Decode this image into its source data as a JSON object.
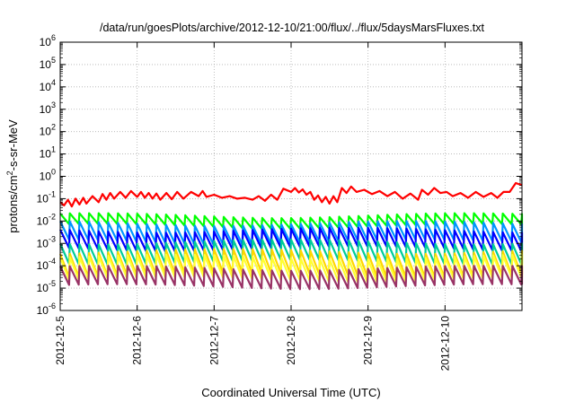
{
  "chart_data": {
    "type": "line",
    "title": "/data/run/goesPlots/archive/2012-12-10/21:00/flux/../flux/5daysMarsFluxes.txt",
    "xlabel": "Coordinated Universal Time (UTC)",
    "ylabel_parts": [
      "protons/cm",
      "2",
      "-s-sr-MeV"
    ],
    "y_scale": "log",
    "ylim": [
      1e-06,
      1000000.0
    ],
    "xlim": [
      "2012-12-05",
      "2012-12-11"
    ],
    "grid": true,
    "y_ticks": [
      {
        "base": "10",
        "exp": "-6"
      },
      {
        "base": "10",
        "exp": "-5"
      },
      {
        "base": "10",
        "exp": "-4"
      },
      {
        "base": "10",
        "exp": "-3"
      },
      {
        "base": "10",
        "exp": "-2"
      },
      {
        "base": "10",
        "exp": "-1"
      },
      {
        "base": "10",
        "exp": "0"
      },
      {
        "base": "10",
        "exp": "1"
      },
      {
        "base": "10",
        "exp": "2"
      },
      {
        "base": "10",
        "exp": "3"
      },
      {
        "base": "10",
        "exp": "4"
      },
      {
        "base": "10",
        "exp": "5"
      },
      {
        "base": "10",
        "exp": "6"
      }
    ],
    "x_ticks": [
      "2012-12-5",
      "2012-12-6",
      "2012-12-7",
      "2012-12-8",
      "2012-12-9",
      "2012-12-10"
    ],
    "series": [
      {
        "color": "#ff0000",
        "x": [
          5.0,
          5.05,
          5.1,
          5.15,
          5.2,
          5.25,
          5.3,
          5.34,
          5.42,
          5.5,
          5.55,
          5.6,
          5.65,
          5.7,
          5.78,
          5.85,
          5.92,
          6.0,
          6.05,
          6.1,
          6.15,
          6.2,
          6.25,
          6.3,
          6.38,
          6.45,
          6.52,
          6.6,
          6.7,
          6.8,
          6.85,
          6.9,
          7.0,
          7.1,
          7.2,
          7.3,
          7.4,
          7.5,
          7.58,
          7.66,
          7.74,
          7.82,
          7.9,
          8.0,
          8.05,
          8.1,
          8.15,
          8.2,
          8.25,
          8.3,
          8.35,
          8.4,
          8.45,
          8.5,
          8.55,
          8.6,
          8.66,
          8.72,
          8.78,
          8.85,
          8.95,
          9.05,
          9.15,
          9.25,
          9.35,
          9.45,
          9.55,
          9.65,
          9.7,
          9.78,
          9.86,
          9.94,
          10.02,
          10.1,
          10.2,
          10.3,
          10.4,
          10.5,
          10.6,
          10.68,
          10.76,
          10.84,
          10.92,
          11.0
        ],
        "values": [
          0.07,
          0.05,
          0.09,
          0.045,
          0.1,
          0.055,
          0.11,
          0.06,
          0.13,
          0.07,
          0.16,
          0.09,
          0.18,
          0.1,
          0.2,
          0.11,
          0.22,
          0.12,
          0.2,
          0.11,
          0.18,
          0.1,
          0.17,
          0.09,
          0.18,
          0.095,
          0.2,
          0.1,
          0.2,
          0.13,
          0.22,
          0.12,
          0.15,
          0.11,
          0.13,
          0.1,
          0.11,
          0.09,
          0.13,
          0.08,
          0.15,
          0.09,
          0.28,
          0.2,
          0.3,
          0.19,
          0.26,
          0.15,
          0.2,
          0.09,
          0.14,
          0.07,
          0.12,
          0.06,
          0.13,
          0.07,
          0.3,
          0.18,
          0.35,
          0.2,
          0.25,
          0.16,
          0.22,
          0.13,
          0.2,
          0.1,
          0.17,
          0.09,
          0.25,
          0.15,
          0.3,
          0.18,
          0.2,
          0.13,
          0.18,
          0.11,
          0.2,
          0.12,
          0.18,
          0.11,
          0.2,
          0.2,
          0.5,
          0.4
        ]
      },
      {
        "color": "#00ff00",
        "peak": 0.018,
        "trough": 0.006
      },
      {
        "color": "#0096ff",
        "peak": 0.008,
        "trough": 0.0012
      },
      {
        "color": "#0000ff",
        "peak": 0.004,
        "trough": 0.0006
      },
      {
        "color": "#00cc99",
        "peak": 0.0012,
        "trough": 0.00015
      },
      {
        "color": "#ffd700",
        "peak": 0.00045,
        "trough": 4e-05
      },
      {
        "color": "#ffff33",
        "peak": 0.00025,
        "trough": 2.5e-05
      },
      {
        "color": "#993366",
        "peak": 8e-05,
        "trough": 1.2e-05
      }
    ],
    "sawtooth_days_per_cycle": 0.125
  }
}
